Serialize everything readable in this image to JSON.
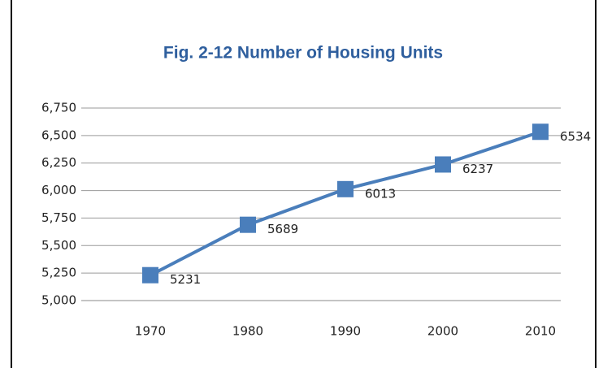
{
  "chart_data": {
    "type": "line",
    "title": "Fig. 2-12  Number of Housing Units",
    "categories": [
      "1970",
      "1980",
      "1990",
      "2000",
      "2010"
    ],
    "values": [
      5231,
      5689,
      6013,
      6237,
      6534
    ],
    "color": "#4a7ebb",
    "ylim": [
      5000,
      6750
    ],
    "yticks": [
      {
        "value": 5000,
        "label": "5,000"
      },
      {
        "value": 5250,
        "label": "5,250"
      },
      {
        "value": 5500,
        "label": "5,500"
      },
      {
        "value": 5750,
        "label": "5,750"
      },
      {
        "value": 6000,
        "label": "6,000"
      },
      {
        "value": 6250,
        "label": "6,250"
      },
      {
        "value": 6500,
        "label": "6,500"
      },
      {
        "value": 6750,
        "label": "6,750"
      }
    ],
    "grid": true
  }
}
